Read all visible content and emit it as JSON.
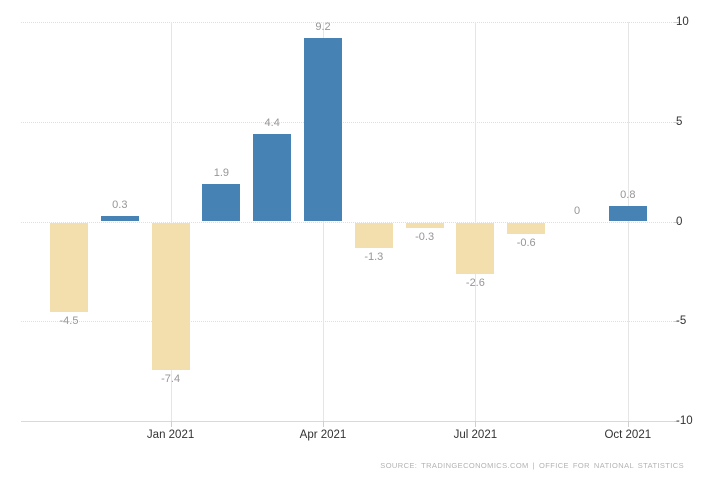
{
  "footer": {
    "source": "SOURCE:  TRADINGECONOMICS.COM  |  OFFICE FOR NATIONAL STATISTICS"
  },
  "chart_data": {
    "type": "bar",
    "title": "",
    "legend": "none",
    "n_bars": 12,
    "values": [
      -4.5,
      0.3,
      -7.4,
      1.9,
      4.4,
      9.2,
      -1.3,
      -0.3,
      -2.6,
      -0.6,
      0,
      0.8
    ],
    "data_labels": [
      "-4.5",
      "0.3",
      "-7.4",
      "1.9",
      "4.4",
      "9.2",
      "-1.3",
      "-0.3",
      "-2.6",
      "-0.6",
      "0",
      "0.8"
    ],
    "x_tick_labels": [
      "Jan 2021",
      "Apr 2021",
      "Jul 2021",
      "Oct 2021"
    ],
    "x_tick_slots": [
      2,
      5,
      8,
      11
    ],
    "y_tick_labels": [
      "10",
      "5",
      "0",
      "-5",
      "-10"
    ],
    "y_tick_values": [
      10,
      5,
      0,
      -5,
      -10
    ],
    "ylim": [
      -10,
      10
    ],
    "grid": {
      "horizontal_dotted": true,
      "vertical_at_labeled_months": true
    },
    "colors": {
      "positive_bar": "#4682b4",
      "negative_bar": "#f3dead",
      "data_label": "#969696",
      "axis_label": "#333333",
      "gridline": "#e2e2e2",
      "axis_line": "#d9d9d9",
      "source_text": "#b3b3b3",
      "background": "#ffffff"
    }
  }
}
